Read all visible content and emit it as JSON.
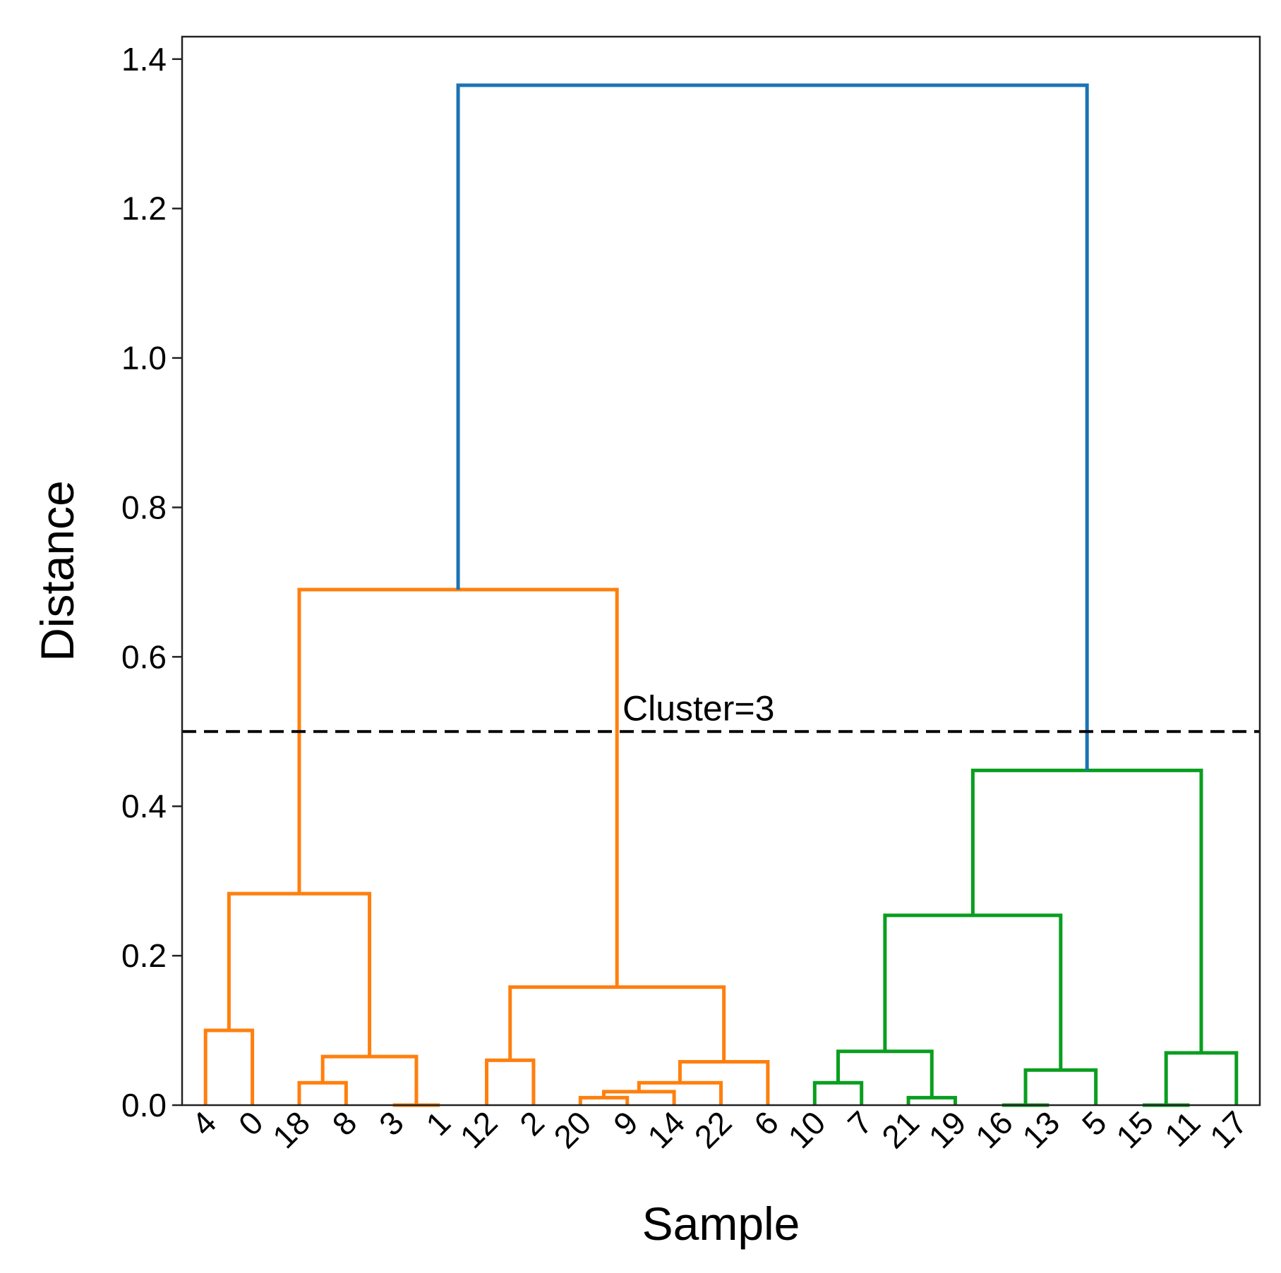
{
  "chart_data": {
    "type": "dendrogram",
    "xlabel": "Sample",
    "ylabel": "Distance",
    "ylim": [
      0,
      1.43
    ],
    "yticks": [
      0.0,
      0.2,
      0.4,
      0.6,
      0.8,
      1.0,
      1.2,
      1.4
    ],
    "ytick_labels": [
      "0.0",
      "0.2",
      "0.4",
      "0.6",
      "0.8",
      "1.0",
      "1.2",
      "1.4"
    ],
    "grid": false,
    "leaves": [
      "4",
      "0",
      "18",
      "8",
      "3",
      "1",
      "12",
      "2",
      "20",
      "9",
      "14",
      "22",
      "6",
      "10",
      "7",
      "21",
      "19",
      "16",
      "13",
      "5",
      "15",
      "11",
      "17"
    ],
    "colors": {
      "orange": "#ff7f0e",
      "green": "#0a9e1f",
      "blue": "#1a73b6",
      "threshold": "#000000"
    },
    "links": [
      {
        "left": "4",
        "right": "0",
        "height": 0.1,
        "color": "orange"
      },
      {
        "left": "18",
        "right": "8",
        "height": 0.03,
        "color": "orange"
      },
      {
        "left": "3",
        "right": "1",
        "height": 0.0,
        "color": "orange"
      },
      {
        "left": "18+8",
        "right": "3+1",
        "height": 0.065,
        "color": "orange"
      },
      {
        "left": "4+0",
        "right": "18+8+3+1",
        "height": 0.283,
        "color": "orange"
      },
      {
        "left": "12",
        "right": "2",
        "height": 0.06,
        "color": "orange"
      },
      {
        "left": "20",
        "right": "9",
        "height": 0.01,
        "color": "orange"
      },
      {
        "left": "20+9",
        "right": "14",
        "height": 0.018,
        "color": "orange"
      },
      {
        "left": "20+9+14",
        "right": "22",
        "height": 0.03,
        "color": "orange"
      },
      {
        "left": "20+9+14+22",
        "right": "6",
        "height": 0.058,
        "color": "orange"
      },
      {
        "left": "12+2",
        "right": "20+9+14+22+6",
        "height": 0.158,
        "color": "orange"
      },
      {
        "left": "4..1",
        "right": "12..6",
        "height": 0.69,
        "color": "orange"
      },
      {
        "left": "10",
        "right": "7",
        "height": 0.03,
        "color": "green"
      },
      {
        "left": "21",
        "right": "19",
        "height": 0.01,
        "color": "green"
      },
      {
        "left": "10+7",
        "right": "21+19",
        "height": 0.072,
        "color": "green"
      },
      {
        "left": "16",
        "right": "13",
        "height": 0.0,
        "color": "green"
      },
      {
        "left": "16+13",
        "right": "5",
        "height": 0.047,
        "color": "green"
      },
      {
        "left": "10..19",
        "right": "16..5",
        "height": 0.254,
        "color": "green"
      },
      {
        "left": "15",
        "right": "11",
        "height": 0.0,
        "color": "green"
      },
      {
        "left": "15+11",
        "right": "17",
        "height": 0.07,
        "color": "green"
      },
      {
        "left": "10..5",
        "right": "15..17",
        "height": 0.448,
        "color": "green"
      },
      {
        "left": "orange-cluster",
        "right": "green-cluster",
        "height": 1.365,
        "color": "blue"
      }
    ],
    "threshold": {
      "value": 0.5,
      "label": "Cluster=3",
      "style": "dashed"
    }
  }
}
